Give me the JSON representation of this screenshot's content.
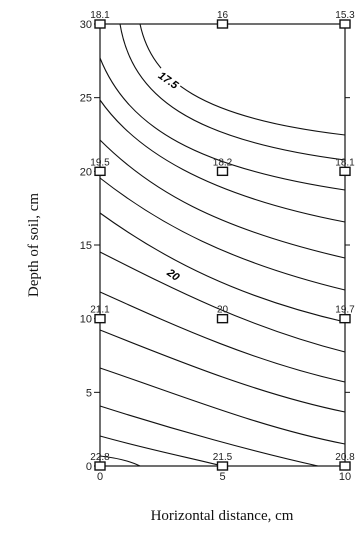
{
  "chart_data": {
    "type": "contour",
    "xlabel": "Horizontal distance, cm",
    "ylabel": "Depth of soil, cm",
    "xlim": [
      0,
      10
    ],
    "ylim": [
      0,
      30
    ],
    "x_ticks": [
      0,
      5,
      10
    ],
    "y_ticks": [
      0,
      5,
      10,
      15,
      20,
      25,
      30
    ],
    "grid": false,
    "points": [
      {
        "x": 0,
        "y": 30,
        "value": "18.1"
      },
      {
        "x": 5,
        "y": 30,
        "value": "16"
      },
      {
        "x": 10,
        "y": 30,
        "value": "15.3"
      },
      {
        "x": 0,
        "y": 20,
        "value": "19.5"
      },
      {
        "x": 5,
        "y": 20,
        "value": "18.2"
      },
      {
        "x": 10,
        "y": 20,
        "value": "18.1"
      },
      {
        "x": 0,
        "y": 10,
        "value": "21.1"
      },
      {
        "x": 5,
        "y": 10,
        "value": "20"
      },
      {
        "x": 10,
        "y": 10,
        "value": "19.7"
      },
      {
        "x": 0,
        "y": 0,
        "value": "22.8"
      },
      {
        "x": 5,
        "y": 0,
        "value": "21.5"
      },
      {
        "x": 10,
        "y": 0,
        "value": "20.8"
      }
    ],
    "contour_labels": [
      {
        "value": "17.5",
        "x": 2.8,
        "y": 26.2
      },
      {
        "value": "20",
        "x": 3.0,
        "y": 13.0
      }
    ]
  }
}
